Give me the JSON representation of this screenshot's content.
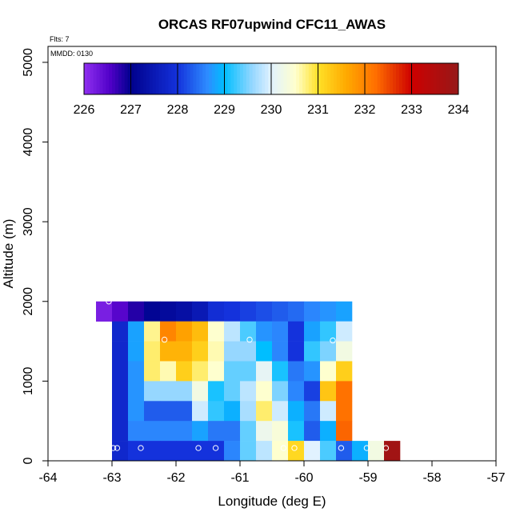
{
  "chart_data": {
    "type": "heatmap",
    "title": "ORCAS RF07upwind CFC11_AWAS",
    "flts_label": "Flts: 7",
    "mmdd_label": "MMDD: 0130",
    "xlabel": "Longitude (deg E)",
    "ylabel": "Altitude (m)",
    "xlim": [
      -64,
      -57
    ],
    "ylim": [
      0,
      5200
    ],
    "x_ticks": [
      -64,
      -63,
      -62,
      -61,
      -60,
      -59,
      -58,
      -57
    ],
    "y_ticks": [
      0,
      1000,
      2000,
      3000,
      4000,
      5000
    ],
    "colorbar": {
      "min": 226,
      "max": 234,
      "ticks": [
        226,
        227,
        228,
        229,
        230,
        231,
        232,
        233,
        234
      ]
    },
    "cell_lon_width": 0.25,
    "cell_alt_height": 250,
    "rows": [
      {
        "alt_bottom": 1750,
        "lon_start": -63.25,
        "values": [
          226.2,
          226.5,
          226.8,
          227.1,
          227.2,
          227.3,
          227.5,
          227.9,
          228.0,
          228.1,
          228.2,
          228.3,
          228.4,
          228.6,
          228.7,
          228.8
        ]
      },
      {
        "alt_bottom": 1500,
        "lon_start": -63.0,
        "values": [
          227.8,
          228.8,
          230.7,
          232.0,
          231.7,
          231.4,
          230.5,
          229.8,
          229.3,
          228.7,
          228.6,
          228.0,
          228.8,
          229.2,
          229.9
        ]
      },
      {
        "alt_bottom": 1250,
        "lon_start": -63.0,
        "values": [
          227.8,
          228.8,
          230.8,
          231.5,
          231.5,
          231.2,
          230.6,
          229.6,
          229.6,
          229.0,
          228.6,
          228.0,
          229.2,
          229.5,
          230.3
        ]
      },
      {
        "alt_bottom": 1000,
        "lon_start": -63.0,
        "values": [
          227.8,
          228.7,
          230.8,
          230.6,
          231.2,
          230.8,
          230.5,
          229.4,
          229.4,
          230.1,
          229.1,
          228.5,
          228.7,
          230.5,
          231.2
        ]
      },
      {
        "alt_bottom": 750,
        "lon_start": -63.0,
        "values": [
          227.8,
          228.7,
          229.6,
          229.6,
          229.6,
          230.3,
          229.1,
          229.4,
          229.8,
          230.5,
          229.5,
          228.6,
          228.1,
          231.3,
          232.2
        ]
      },
      {
        "alt_bottom": 500,
        "lon_start": -63.0,
        "values": [
          227.8,
          228.7,
          228.3,
          228.3,
          228.3,
          229.9,
          229.2,
          228.9,
          229.7,
          230.8,
          229.9,
          228.9,
          228.5,
          229.9,
          232.2
        ]
      },
      {
        "alt_bottom": 250,
        "lon_start": -63.0,
        "values": [
          227.8,
          228.6,
          228.6,
          228.6,
          228.6,
          228.8,
          228.5,
          228.5,
          229.4,
          230.2,
          230.4,
          229.1,
          228.3,
          228.9,
          232.3
        ]
      },
      {
        "alt_bottom": 0,
        "lon_start": -63.0,
        "values": [
          227.8,
          228.0,
          228.0,
          228.0,
          228.0,
          228.0,
          228.0,
          228.6,
          229.4,
          229.8,
          230.5,
          231.1,
          230.0,
          229.3,
          228.3,
          228.9,
          230.3,
          233.8
        ]
      }
    ],
    "sample_points": [
      {
        "lon": -63.05,
        "alt": 2000
      },
      {
        "lon": -62.98,
        "alt": 160
      },
      {
        "lon": -62.92,
        "alt": 160
      },
      {
        "lon": -62.55,
        "alt": 160
      },
      {
        "lon": -62.18,
        "alt": 1520
      },
      {
        "lon": -61.65,
        "alt": 160
      },
      {
        "lon": -61.38,
        "alt": 160
      },
      {
        "lon": -60.85,
        "alt": 1520
      },
      {
        "lon": -60.32,
        "alt": 160
      },
      {
        "lon": -60.15,
        "alt": 160
      },
      {
        "lon": -59.55,
        "alt": 1510
      },
      {
        "lon": -59.42,
        "alt": 160
      },
      {
        "lon": -59.02,
        "alt": 160
      },
      {
        "lon": -58.9,
        "alt": 1900
      },
      {
        "lon": -58.72,
        "alt": 160
      }
    ]
  }
}
